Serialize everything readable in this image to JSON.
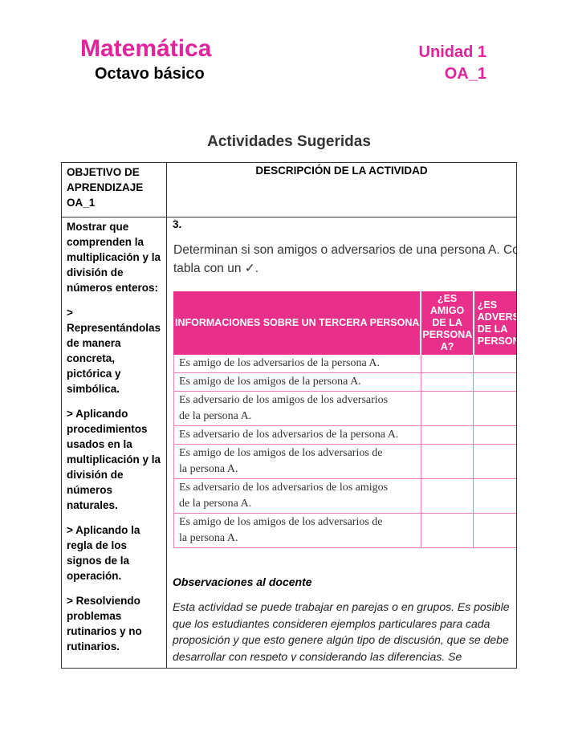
{
  "header": {
    "subject": "Matemática",
    "grade": "Octavo básico",
    "unit": "Unidad 1",
    "objective_code": "OA_1"
  },
  "title": "Actividades Sugeridas",
  "table": {
    "headers": [
      "OBJETIVO DE APRENDIZAJE OA_1",
      "DESCRIPCIÓN DE LA ACTIVIDAD"
    ],
    "objective": {
      "intro": "Mostrar que comprenden la multiplicación y la división de números enteros:",
      "items": [
        "> Representándolas de manera concreta, pictórica y simbólica.",
        "> Aplicando procedimientos usados en la multiplicación y la división de números naturales.",
        "> Aplicando la regla de los signos de la operación.",
        "> Resolviendo problemas rutinarios y no rutinarios."
      ]
    },
    "activity": {
      "number": "3.",
      "instruction_lines": [
        "Determinan si son amigos o adversarios de una persona A. Completa la",
        "tabla con un ✓."
      ],
      "inner_table": {
        "headers": [
          "INFORMACIONES SOBRE UN TERCERA PERSONA",
          "¿ES AMIGO DE LA PERSONA A?",
          "¿ES ADVERSARIO DE LA PERSONA A?"
        ],
        "rows": [
          [
            "Es amigo de los adversarios de la persona A."
          ],
          [
            "Es amigo de los amigos de la persona A."
          ],
          [
            "Es adversario de los amigos de los adversarios",
            "de la persona A."
          ],
          [
            "Es adversario de los adversarios de la persona A."
          ],
          [
            "Es amigo de los amigos de los adversarios de",
            "la persona A."
          ],
          [
            "Es adversario de los adversarios de los amigos",
            "de la persona A."
          ],
          [
            "Es amigo de los amigos de los adversarios de",
            "la persona A."
          ]
        ]
      },
      "notes_title": "Observaciones al docente",
      "notes": "Esta actividad se puede trabajar en parejas o en grupos. Es posible que los estudiantes consideren ejemplos particulares para cada proposición y que esto genere algún tipo de discusión, que se debe desarrollar con respeto y considerando las diferencias. Se"
    }
  }
}
